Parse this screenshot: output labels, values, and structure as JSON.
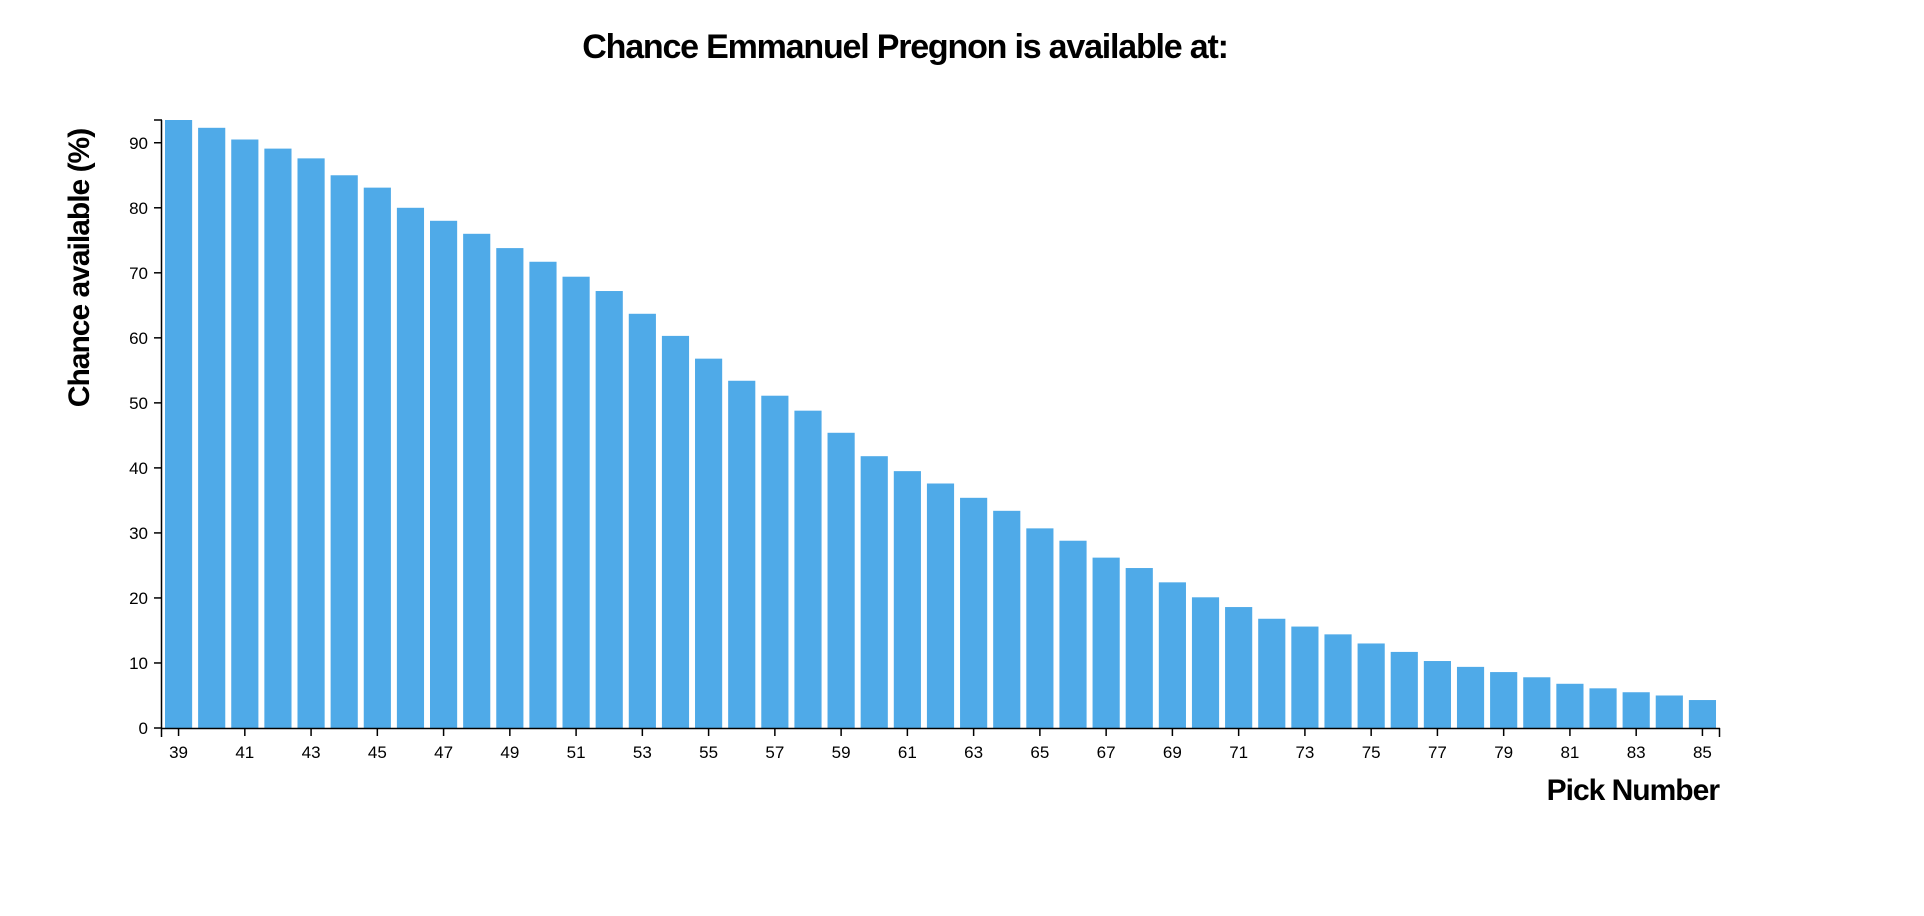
{
  "chart_data": {
    "type": "bar",
    "title": "Chance Emmanuel Pregnon is available at:",
    "xlabel": "Pick Number",
    "ylabel": "Chance available (%)",
    "bar_color": "#4faae8",
    "ylim": [
      0,
      93.5
    ],
    "y_ticks": [
      0,
      10,
      20,
      30,
      40,
      50,
      60,
      70,
      80,
      90
    ],
    "x_tick_labels": [
      "39",
      "41",
      "43",
      "45",
      "47",
      "49",
      "51",
      "53",
      "55",
      "57",
      "59",
      "61",
      "63",
      "65",
      "67",
      "69",
      "71",
      "73",
      "75",
      "77",
      "79",
      "81",
      "83",
      "85"
    ],
    "categories": [
      39,
      40,
      41,
      42,
      43,
      44,
      45,
      46,
      47,
      48,
      49,
      50,
      51,
      52,
      53,
      54,
      55,
      56,
      57,
      58,
      59,
      60,
      61,
      62,
      63,
      64,
      65,
      66,
      67,
      68,
      69,
      70,
      71,
      72,
      73,
      74,
      75,
      76,
      77,
      78,
      79,
      80,
      81,
      82,
      83,
      84,
      85
    ],
    "values": [
      93.5,
      92.3,
      90.5,
      89.1,
      87.6,
      85.0,
      83.1,
      80.0,
      78.0,
      76.0,
      73.8,
      71.7,
      69.4,
      67.2,
      63.7,
      60.3,
      56.8,
      53.4,
      51.1,
      48.8,
      45.4,
      41.8,
      39.5,
      37.6,
      35.4,
      33.4,
      30.7,
      28.8,
      26.2,
      24.6,
      22.4,
      20.1,
      18.6,
      16.8,
      15.6,
      14.4,
      13.0,
      11.7,
      10.3,
      9.4,
      8.6,
      7.8,
      6.8,
      6.1,
      5.5,
      5.0,
      4.3
    ]
  }
}
